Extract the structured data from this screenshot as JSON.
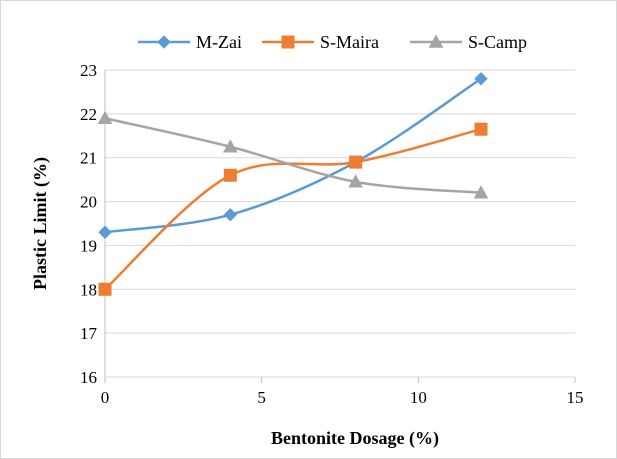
{
  "chart_data": {
    "type": "line",
    "smooth": true,
    "x": [
      0,
      4,
      8,
      12
    ],
    "series": [
      {
        "name": "M-Zai",
        "values": [
          19.3,
          19.7,
          20.9,
          22.8
        ],
        "color": "#5B9BD5",
        "marker": "diamond"
      },
      {
        "name": "S-Maira",
        "values": [
          18.0,
          20.6,
          20.9,
          21.65
        ],
        "color": "#ED7D31",
        "marker": "square"
      },
      {
        "name": "S-Camp",
        "values": [
          21.9,
          21.25,
          20.45,
          20.2
        ],
        "color": "#A5A5A5",
        "marker": "triangle"
      }
    ],
    "xlabel": "Bentonite Dosage (%)",
    "ylabel": "Plastic Limit (%)",
    "xlim": [
      0,
      15
    ],
    "ylim": [
      16,
      23
    ],
    "xticks": [
      0,
      5,
      10,
      15
    ],
    "yticks": [
      16,
      17,
      18,
      19,
      20,
      21,
      22,
      23
    ],
    "grid": "horizontal",
    "legend_position": "top"
  }
}
